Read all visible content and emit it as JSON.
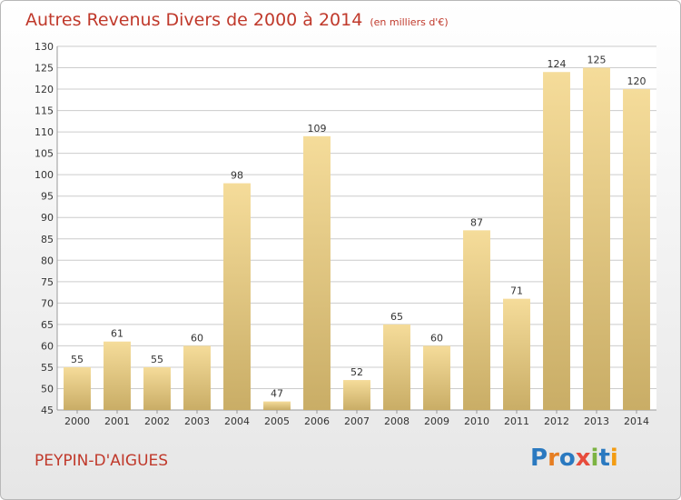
{
  "header": {
    "title": "Autres Revenus Divers de 2000 à 2014",
    "unit": "(en milliers d'€)"
  },
  "footer": {
    "commune": "PEYPIN-D'AIGUES",
    "brand_letters": [
      "P",
      "r",
      "o",
      "x",
      "i",
      "t",
      "i"
    ]
  },
  "colors": {
    "title": "#c0392b",
    "bar_light": "#f5dc9a",
    "bar_dark": "#c9ad66",
    "grid": "#cccccc"
  },
  "chart_data": {
    "type": "bar",
    "categories": [
      "2000",
      "2001",
      "2002",
      "2003",
      "2004",
      "2005",
      "2006",
      "2007",
      "2008",
      "2009",
      "2010",
      "2011",
      "2012",
      "2013",
      "2014"
    ],
    "values": [
      55,
      61,
      55,
      60,
      98,
      47,
      109,
      52,
      65,
      60,
      87,
      71,
      124,
      125,
      120
    ],
    "ylim": [
      45,
      130
    ],
    "yticks": [
      45,
      50,
      55,
      60,
      65,
      70,
      75,
      80,
      85,
      90,
      95,
      100,
      105,
      110,
      115,
      120,
      125,
      130
    ],
    "grid": true,
    "data_labels": true
  }
}
